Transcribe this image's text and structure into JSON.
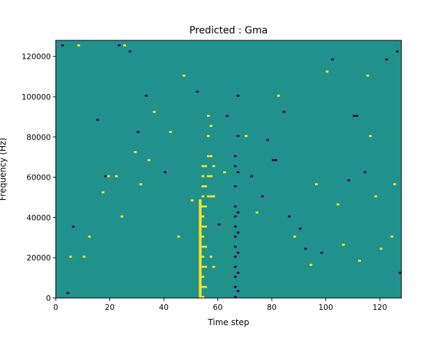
{
  "chart_data": {
    "type": "heatmap",
    "title": "Predicted : Gma",
    "xlabel": "Time step",
    "ylabel": "Frequency (Hz)",
    "xlim": [
      0,
      128
    ],
    "ylim": [
      0,
      128000
    ],
    "xticks": [
      0,
      20,
      40,
      60,
      80,
      100,
      120
    ],
    "xtick_labels": [
      "0",
      "20",
      "40",
      "60",
      "80",
      "100",
      "120"
    ],
    "yticks": [
      0,
      20000,
      40000,
      60000,
      80000,
      100000,
      120000
    ],
    "ytick_labels": [
      "0",
      "20000",
      "40000",
      "60000",
      "80000",
      "100000",
      "120000"
    ],
    "colormap": {
      "low": "#440154",
      "mid": "#21918c",
      "high": "#fde725"
    },
    "background_value": 0,
    "values_legend": {
      "-1": "low",
      "0": "mid",
      "1": "high"
    },
    "cells": [
      [
        53,
        0,
        1
      ],
      [
        53,
        1000,
        1
      ],
      [
        53,
        2000,
        1
      ],
      [
        53,
        3000,
        1
      ],
      [
        53,
        4000,
        1
      ],
      [
        53,
        5000,
        1
      ],
      [
        53,
        6000,
        1
      ],
      [
        53,
        7000,
        1
      ],
      [
        53,
        8000,
        1
      ],
      [
        53,
        9000,
        1
      ],
      [
        53,
        10000,
        1
      ],
      [
        53,
        11000,
        1
      ],
      [
        53,
        12000,
        1
      ],
      [
        53,
        13000,
        1
      ],
      [
        53,
        14000,
        1
      ],
      [
        53,
        15000,
        1
      ],
      [
        53,
        16000,
        1
      ],
      [
        53,
        17000,
        1
      ],
      [
        53,
        18000,
        1
      ],
      [
        53,
        19000,
        1
      ],
      [
        53,
        20000,
        1
      ],
      [
        53,
        21000,
        1
      ],
      [
        53,
        22000,
        1
      ],
      [
        53,
        23000,
        1
      ],
      [
        53,
        24000,
        1
      ],
      [
        53,
        25000,
        1
      ],
      [
        53,
        26000,
        1
      ],
      [
        53,
        27000,
        1
      ],
      [
        53,
        28000,
        1
      ],
      [
        53,
        29000,
        1
      ],
      [
        53,
        30000,
        1
      ],
      [
        53,
        31000,
        1
      ],
      [
        53,
        32000,
        1
      ],
      [
        53,
        33000,
        1
      ],
      [
        53,
        34000,
        1
      ],
      [
        53,
        35000,
        1
      ],
      [
        53,
        36000,
        1
      ],
      [
        53,
        37000,
        1
      ],
      [
        53,
        38000,
        1
      ],
      [
        53,
        39000,
        1
      ],
      [
        53,
        40000,
        1
      ],
      [
        53,
        41000,
        1
      ],
      [
        53,
        42000,
        1
      ],
      [
        53,
        43000,
        1
      ],
      [
        53,
        44000,
        1
      ],
      [
        53,
        45000,
        1
      ],
      [
        53,
        46000,
        1
      ],
      [
        53,
        47000,
        1
      ],
      [
        53,
        48000,
        1
      ],
      [
        54,
        0,
        1
      ],
      [
        54,
        5000,
        1
      ],
      [
        54,
        10000,
        1
      ],
      [
        54,
        15000,
        1
      ],
      [
        54,
        20000,
        1
      ],
      [
        54,
        25000,
        1
      ],
      [
        54,
        30000,
        1
      ],
      [
        54,
        35000,
        1
      ],
      [
        54,
        40000,
        1
      ],
      [
        54,
        45000,
        1
      ],
      [
        54,
        50000,
        1
      ],
      [
        54,
        55000,
        1
      ],
      [
        54,
        60000,
        1
      ],
      [
        54,
        65000,
        1
      ],
      [
        55,
        5000,
        1
      ],
      [
        55,
        15000,
        1
      ],
      [
        55,
        25000,
        1
      ],
      [
        55,
        35000,
        1
      ],
      [
        55,
        45000,
        1
      ],
      [
        55,
        55000,
        1
      ],
      [
        55,
        65000,
        1
      ],
      [
        56,
        50000,
        1
      ],
      [
        56,
        60000,
        1
      ],
      [
        56,
        70000,
        1
      ],
      [
        56,
        80000,
        1
      ],
      [
        56,
        90000,
        1
      ],
      [
        57,
        20000,
        1
      ],
      [
        57,
        50000,
        1
      ],
      [
        57,
        60000,
        1
      ],
      [
        57,
        70000,
        1
      ],
      [
        57,
        85000,
        1
      ],
      [
        58,
        15000,
        1
      ],
      [
        58,
        50000,
        1
      ],
      [
        58,
        65000,
        1
      ],
      [
        66,
        0,
        -1
      ],
      [
        66,
        5000,
        -1
      ],
      [
        66,
        10000,
        -1
      ],
      [
        66,
        15000,
        -1
      ],
      [
        66,
        20000,
        -1
      ],
      [
        66,
        25000,
        -1
      ],
      [
        66,
        30000,
        -1
      ],
      [
        66,
        35000,
        -1
      ],
      [
        66,
        40000,
        -1
      ],
      [
        66,
        45000,
        -1
      ],
      [
        66,
        55000,
        -1
      ],
      [
        66,
        65000,
        -1
      ],
      [
        66,
        70000,
        -1
      ],
      [
        67,
        3000,
        -1
      ],
      [
        67,
        12000,
        -1
      ],
      [
        67,
        22000,
        -1
      ],
      [
        67,
        32000,
        -1
      ],
      [
        67,
        42000,
        -1
      ],
      [
        67,
        62000,
        -1
      ],
      [
        67,
        80000,
        -1
      ],
      [
        67,
        100000,
        -1
      ],
      [
        2,
        125000,
        -1
      ],
      [
        4,
        2000,
        -1
      ],
      [
        5,
        20000,
        1
      ],
      [
        6,
        35000,
        -1
      ],
      [
        8,
        125000,
        1
      ],
      [
        10,
        20000,
        1
      ],
      [
        12,
        30000,
        1
      ],
      [
        15,
        88000,
        -1
      ],
      [
        17,
        52000,
        1
      ],
      [
        18,
        60000,
        -1
      ],
      [
        19,
        60000,
        1
      ],
      [
        22,
        60000,
        1
      ],
      [
        23,
        125000,
        -1
      ],
      [
        24,
        40000,
        1
      ],
      [
        25,
        125000,
        1
      ],
      [
        27,
        122000,
        -1
      ],
      [
        29,
        72000,
        1
      ],
      [
        30,
        82000,
        -1
      ],
      [
        31,
        56000,
        1
      ],
      [
        33,
        100000,
        -1
      ],
      [
        34,
        68000,
        1
      ],
      [
        36,
        92000,
        1
      ],
      [
        40,
        62000,
        -1
      ],
      [
        42,
        82000,
        1
      ],
      [
        45,
        30000,
        1
      ],
      [
        47,
        110000,
        1
      ],
      [
        50,
        48000,
        1
      ],
      [
        52,
        102000,
        -1
      ],
      [
        60,
        36000,
        -1
      ],
      [
        62,
        62000,
        1
      ],
      [
        63,
        90000,
        -1
      ],
      [
        70,
        80000,
        1
      ],
      [
        72,
        60000,
        -1
      ],
      [
        74,
        42000,
        1
      ],
      [
        76,
        50000,
        -1
      ],
      [
        78,
        78000,
        -1
      ],
      [
        80,
        68000,
        -1
      ],
      [
        81,
        68000,
        -1
      ],
      [
        82,
        100000,
        1
      ],
      [
        84,
        92000,
        -1
      ],
      [
        86,
        40000,
        -1
      ],
      [
        88,
        30000,
        1
      ],
      [
        90,
        34000,
        -1
      ],
      [
        92,
        24000,
        -1
      ],
      [
        94,
        16000,
        1
      ],
      [
        96,
        56000,
        1
      ],
      [
        98,
        22000,
        -1
      ],
      [
        100,
        112000,
        1
      ],
      [
        102,
        118000,
        -1
      ],
      [
        104,
        46000,
        1
      ],
      [
        106,
        26000,
        1
      ],
      [
        108,
        58000,
        -1
      ],
      [
        110,
        90000,
        -1
      ],
      [
        111,
        90000,
        -1
      ],
      [
        112,
        18000,
        1
      ],
      [
        114,
        62000,
        -1
      ],
      [
        115,
        110000,
        1
      ],
      [
        116,
        80000,
        1
      ],
      [
        118,
        50000,
        1
      ],
      [
        120,
        24000,
        1
      ],
      [
        122,
        118000,
        -1
      ],
      [
        124,
        30000,
        1
      ],
      [
        125,
        56000,
        1
      ],
      [
        126,
        122000,
        -1
      ],
      [
        127,
        12000,
        -1
      ]
    ]
  }
}
